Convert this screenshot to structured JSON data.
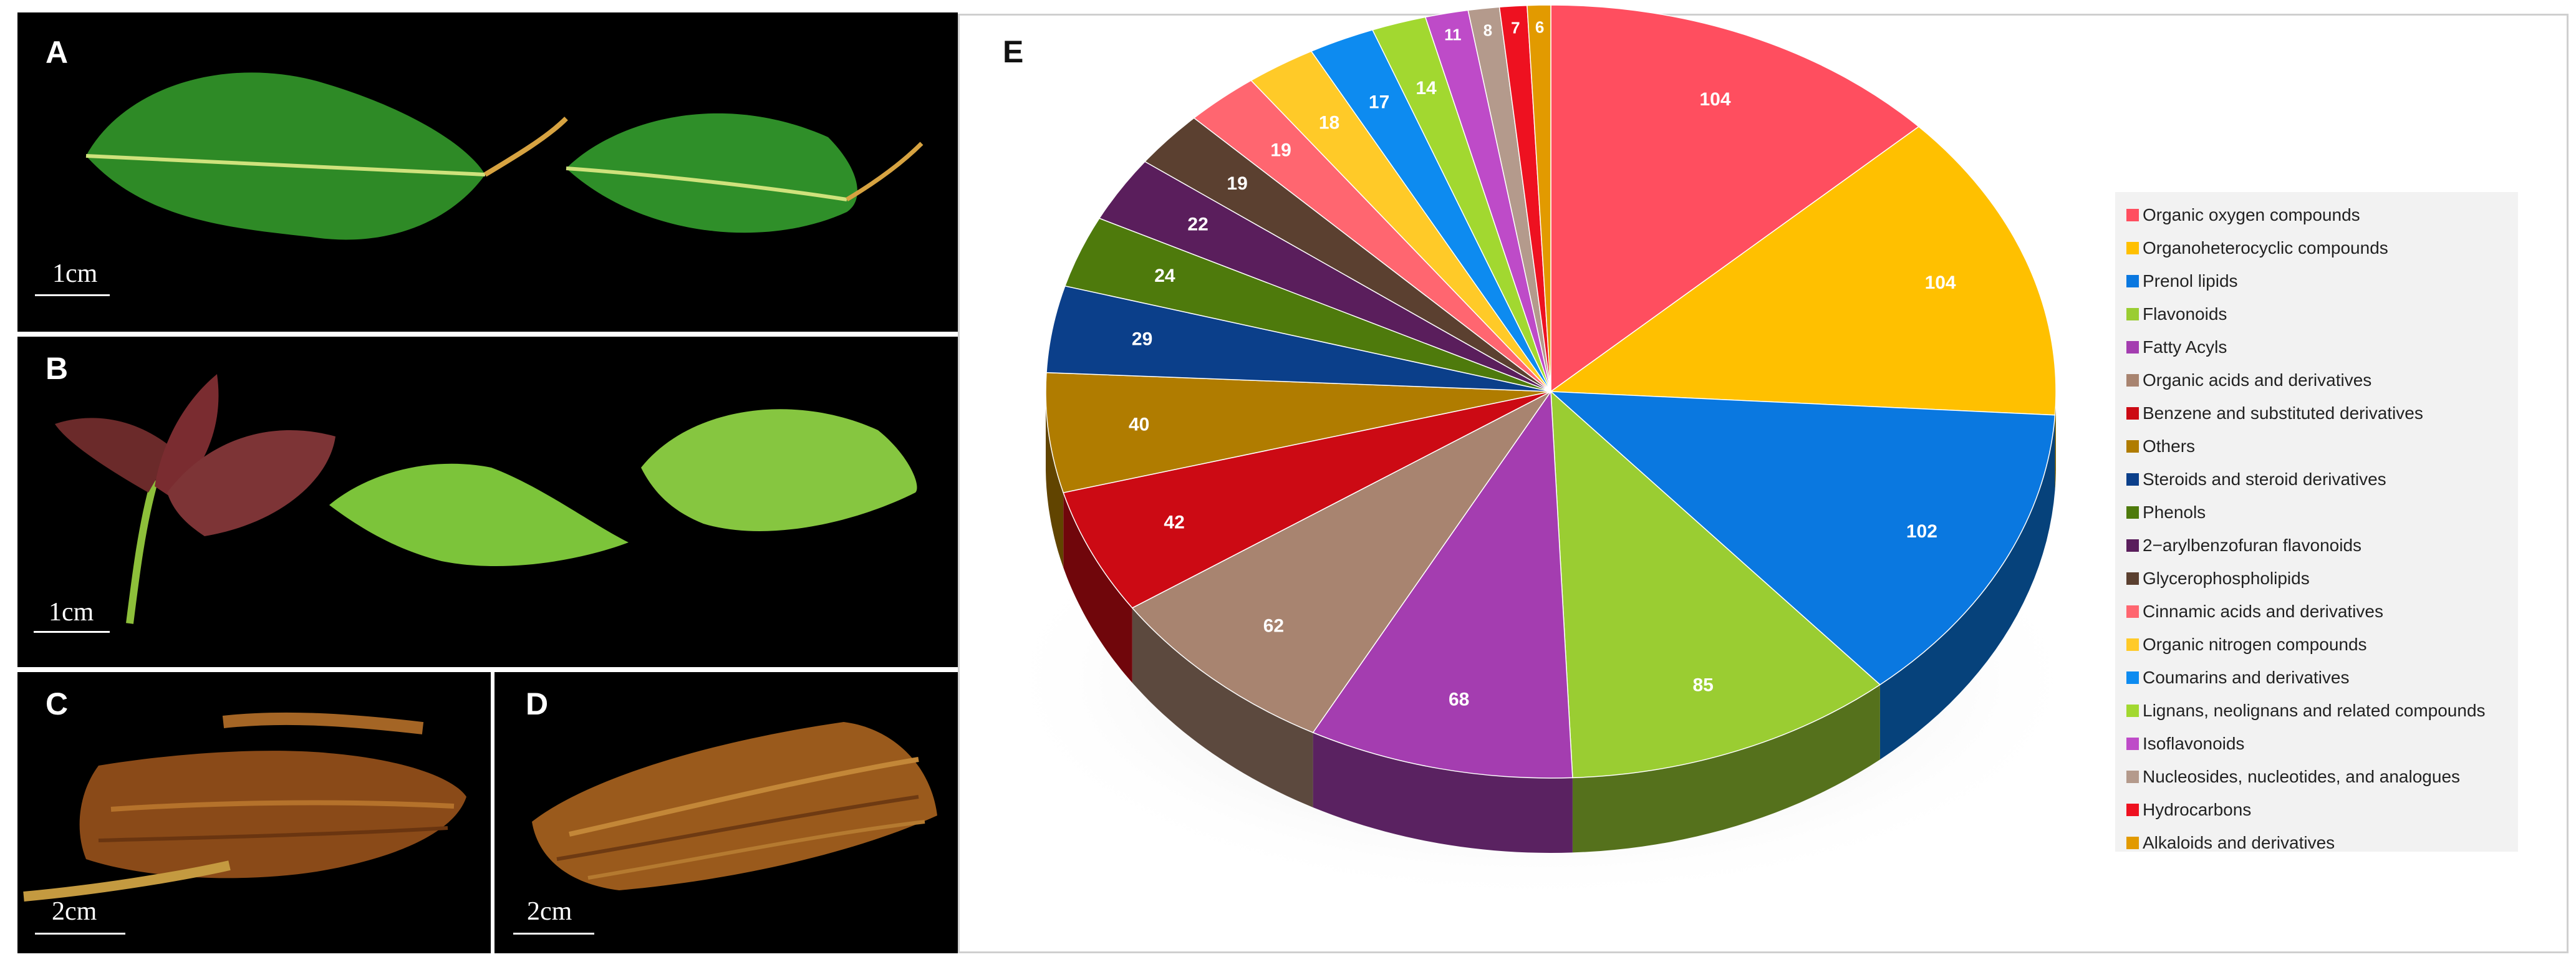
{
  "photos": {
    "label_a": "A",
    "label_b": "B",
    "label_c": "C",
    "label_d": "D",
    "scale_a": "1cm",
    "scale_b": "1cm",
    "scale_c": "2cm",
    "scale_d": "2cm"
  },
  "chart_data": {
    "type": "pie",
    "panel_label": "E",
    "title": "",
    "categories": [
      "Organic oxygen compounds",
      "Organoheterocyclic compounds",
      "Prenol lipids",
      "Flavonoids",
      "Fatty Acyls",
      "Organic acids and derivatives",
      "Benzene and substituted derivatives",
      "Others",
      "Steroids and steroid derivatives",
      "Phenols",
      "2−arylbenzofuran flavonoids",
      "Glycerophospholipids",
      "Cinnamic acids and derivatives",
      "Organic nitrogen compounds",
      "Coumarins and derivatives",
      "Lignans, neolignans and related compounds",
      "Isoflavonoids",
      "Nucleosides, nucleotides, and analogues",
      "Hydrocarbons",
      "Alkaloids and derivatives"
    ],
    "values": [
      104,
      104,
      102,
      85,
      68,
      62,
      42,
      40,
      29,
      24,
      22,
      19,
      19,
      18,
      17,
      14,
      11,
      8,
      7,
      6
    ],
    "value_labels": [
      "104",
      "104",
      "102",
      "85",
      "68",
      "62",
      "42",
      "40",
      "29",
      "24",
      "22",
      "19",
      "19",
      "18",
      "17",
      "14",
      "11",
      "8",
      "7",
      "6"
    ],
    "colors": [
      "#FF4E5F",
      "#FFC000",
      "#0A78E0",
      "#9ACD32",
      "#A43DB0",
      "#A88470",
      "#CC0A14",
      "#B07C00",
      "#0B3F8A",
      "#4E7A0C",
      "#5A1E5C",
      "#5B4030",
      "#FF6670",
      "#FFCA28",
      "#0D8BF0",
      "#A2D830",
      "#BE4BC8",
      "#B49A8C",
      "#EE1120",
      "#E29A00"
    ],
    "legend_position": "right"
  }
}
